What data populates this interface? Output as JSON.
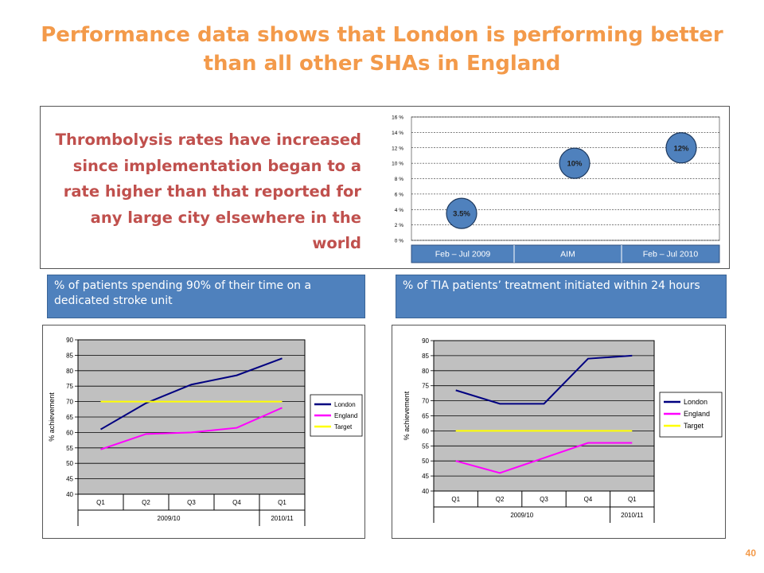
{
  "slide": {
    "title_line1": "Performance data shows that London is performing better",
    "title_line2": "than all other SHAs in England",
    "thrombolysis_text": [
      "Thrombolysis rates have increased",
      "since implementation began to a",
      "rate higher than that reported for",
      "any large city elsewhere in the",
      "world"
    ],
    "page_number": "40",
    "accent_color": "#F39A4A",
    "text_red": "#C0504D",
    "bar_blue": "#4F81BD"
  },
  "panels": {
    "left_label": "% of patients spending 90% of their time on a dedicated stroke unit",
    "right_label": "% of TIA patients’ treatment initiated within 24 hours"
  },
  "chart_data": [
    {
      "type": "scatter",
      "yticks": [
        "0 %",
        "2 %",
        "4 %",
        "6 %",
        "8 %",
        "10 %",
        "12 %",
        "14 %",
        "16 %"
      ],
      "ylim": [
        0,
        16
      ],
      "categories": [
        "Feb – Jul 2009",
        "AIM",
        "Feb – Jul 2010"
      ],
      "points": [
        {
          "category": "Feb – Jul 2009",
          "value": 3.5,
          "label": "3.5%"
        },
        {
          "category": "AIM",
          "value": 10,
          "label": "10%"
        },
        {
          "category": "Feb – Jul 2010",
          "value": 12,
          "label": "12%"
        }
      ],
      "bubble_color": "#4F81BD",
      "grid": true
    },
    {
      "type": "line",
      "ylabel": "% achievement",
      "ylim": [
        40,
        90
      ],
      "yticks": [
        "40",
        "45",
        "50",
        "55",
        "60",
        "65",
        "70",
        "75",
        "80",
        "85",
        "90"
      ],
      "categories": [
        "Q1",
        "Q2",
        "Q3",
        "Q4",
        "Q1"
      ],
      "groups": [
        {
          "label": "2009/10",
          "span": 4
        },
        {
          "label": "2010/11",
          "span": 1
        }
      ],
      "series": [
        {
          "name": "London",
          "values": [
            61,
            69.5,
            75.5,
            78.5,
            84
          ],
          "color": "#000080"
        },
        {
          "name": "England",
          "values": [
            54.5,
            59.5,
            60,
            61.5,
            68
          ],
          "color": "#FF00FF"
        },
        {
          "name": "Target",
          "values": [
            70,
            70,
            70,
            70,
            70
          ],
          "color": "#FFFF00"
        }
      ],
      "plot_bg": "#C0C0C0",
      "grid": true,
      "legend": "right"
    },
    {
      "type": "line",
      "ylabel": "% achievement",
      "ylim": [
        40,
        90
      ],
      "yticks": [
        "40",
        "45",
        "50",
        "55",
        "60",
        "65",
        "70",
        "75",
        "80",
        "85",
        "90"
      ],
      "categories": [
        "Q1",
        "Q2",
        "Q3",
        "Q4",
        "Q1"
      ],
      "groups": [
        {
          "label": "2009/10",
          "span": 4
        },
        {
          "label": "2010/11",
          "span": 1
        }
      ],
      "series": [
        {
          "name": "London",
          "values": [
            73.5,
            69,
            69,
            84,
            85
          ],
          "color": "#000080"
        },
        {
          "name": "England",
          "values": [
            50,
            46,
            51,
            56,
            56
          ],
          "color": "#FF00FF"
        },
        {
          "name": "Target",
          "values": [
            60,
            60,
            60,
            60,
            60
          ],
          "color": "#FFFF00"
        }
      ],
      "plot_bg": "#C0C0C0",
      "grid": true,
      "legend": "right"
    }
  ]
}
